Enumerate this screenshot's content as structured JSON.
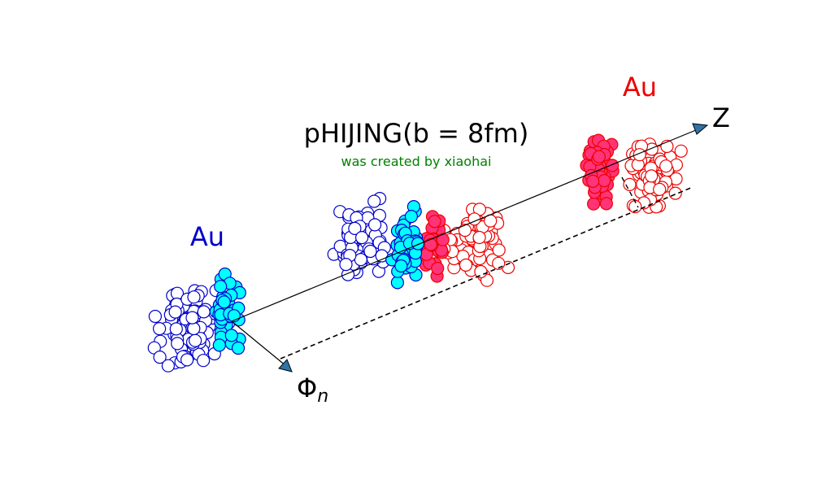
{
  "title": "pHIJING(b = 8fm)",
  "subtitle": "was created by xiaohai",
  "left_nucleus_label": "Au",
  "right_nucleus_label": "Au",
  "z_axis_label": "Z",
  "phi_axis_label": "Φ",
  "phi_axis_subscript": "n",
  "colors": {
    "title": "#000000",
    "subtitle": "#008000",
    "left_label": "#0000cc",
    "right_label": "#ee0000",
    "spectator_left_edge": "#0000cc",
    "participant_left_fill": "#00ffff",
    "spectator_right_edge": "#ee0000",
    "participant_right_fill": "#ff3377",
    "arrow_fill": "#2e74a8"
  },
  "icons": {
    "z_arrow": "arrowhead-icon",
    "phi_arrow": "arrowhead-icon"
  }
}
